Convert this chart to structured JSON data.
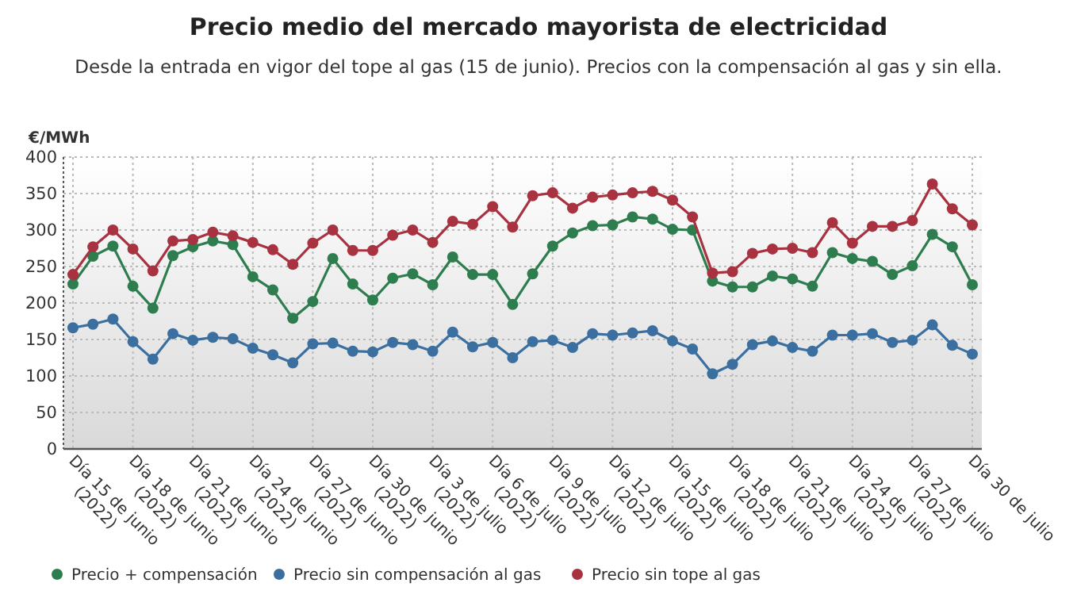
{
  "chart_data": {
    "type": "line",
    "title": "Precio medio del mercado mayorista de electricidad",
    "subtitle": "Desde la entrada en vigor del tope al gas (15 de junio). Precios con la compensación al gas y sin ella.",
    "ylabel": "€/MWh",
    "categories": [
      "Día 15 de junio\n(2022)",
      null,
      null,
      "Día 18 de junio\n(2022)",
      null,
      null,
      "Día 21 de junio\n(2022)",
      null,
      null,
      "Día 24 de junio\n(2022)",
      null,
      null,
      "Día 27 de junio\n(2022)",
      null,
      null,
      "Día 30 de junio\n(2022)",
      null,
      null,
      "Día 3 de julio\n(2022)",
      null,
      null,
      "Día 6 de julio\n(2022)",
      null,
      null,
      "Día 9 de julio\n(2022)",
      null,
      null,
      "Día 12 de julio\n(2022)",
      null,
      null,
      "Día 15 de julio\n(2022)",
      null,
      null,
      "Día 18 de julio\n(2022)",
      null,
      null,
      "Día 21 de julio\n(2022)",
      null,
      null,
      "Día 24 de julio\n(2022)",
      null,
      null,
      "Día 27 de julio\n(2022)",
      null,
      null,
      "Día 30 de julio"
    ],
    "series": [
      {
        "name": "Precio + compensación",
        "color": "#2e7d4f",
        "values": [
          226,
          264,
          278,
          223,
          193,
          265,
          277,
          285,
          280,
          236,
          218,
          179,
          202,
          261,
          226,
          204,
          234,
          240,
          225,
          263,
          239,
          239,
          198,
          240,
          278,
          296,
          306,
          307,
          318,
          315,
          301,
          300,
          230,
          222,
          222,
          237,
          233,
          223,
          269,
          261,
          257,
          239,
          251,
          294,
          277,
          225
        ]
      },
      {
        "name": "Precio sin compensación al gas",
        "color": "#3a6fa0",
        "values": [
          166,
          171,
          178,
          147,
          123,
          158,
          149,
          153,
          151,
          138,
          129,
          118,
          144,
          145,
          134,
          133,
          146,
          143,
          134,
          160,
          140,
          146,
          125,
          147,
          149,
          139,
          158,
          156,
          159,
          162,
          148,
          137,
          103,
          116,
          143,
          148,
          139,
          134,
          156,
          156,
          158,
          146,
          149,
          170,
          142,
          130
        ]
      },
      {
        "name": "Precio sin tope al gas",
        "color": "#a83240",
        "values": [
          239,
          277,
          300,
          274,
          244,
          285,
          287,
          297,
          292,
          283,
          273,
          253,
          282,
          300,
          272,
          272,
          293,
          300,
          283,
          312,
          308,
          332,
          304,
          347,
          351,
          330,
          345,
          348,
          351,
          353,
          341,
          318,
          241,
          243,
          268,
          274,
          275,
          269,
          310,
          282,
          305,
          305,
          313,
          363,
          329,
          307
        ]
      }
    ],
    "ylim": [
      0,
      400
    ],
    "yticks": [
      0,
      50,
      100,
      150,
      200,
      250,
      300,
      350,
      400
    ],
    "grid": true,
    "legend": "bottom",
    "marker": "circle",
    "line_style": "solid"
  }
}
